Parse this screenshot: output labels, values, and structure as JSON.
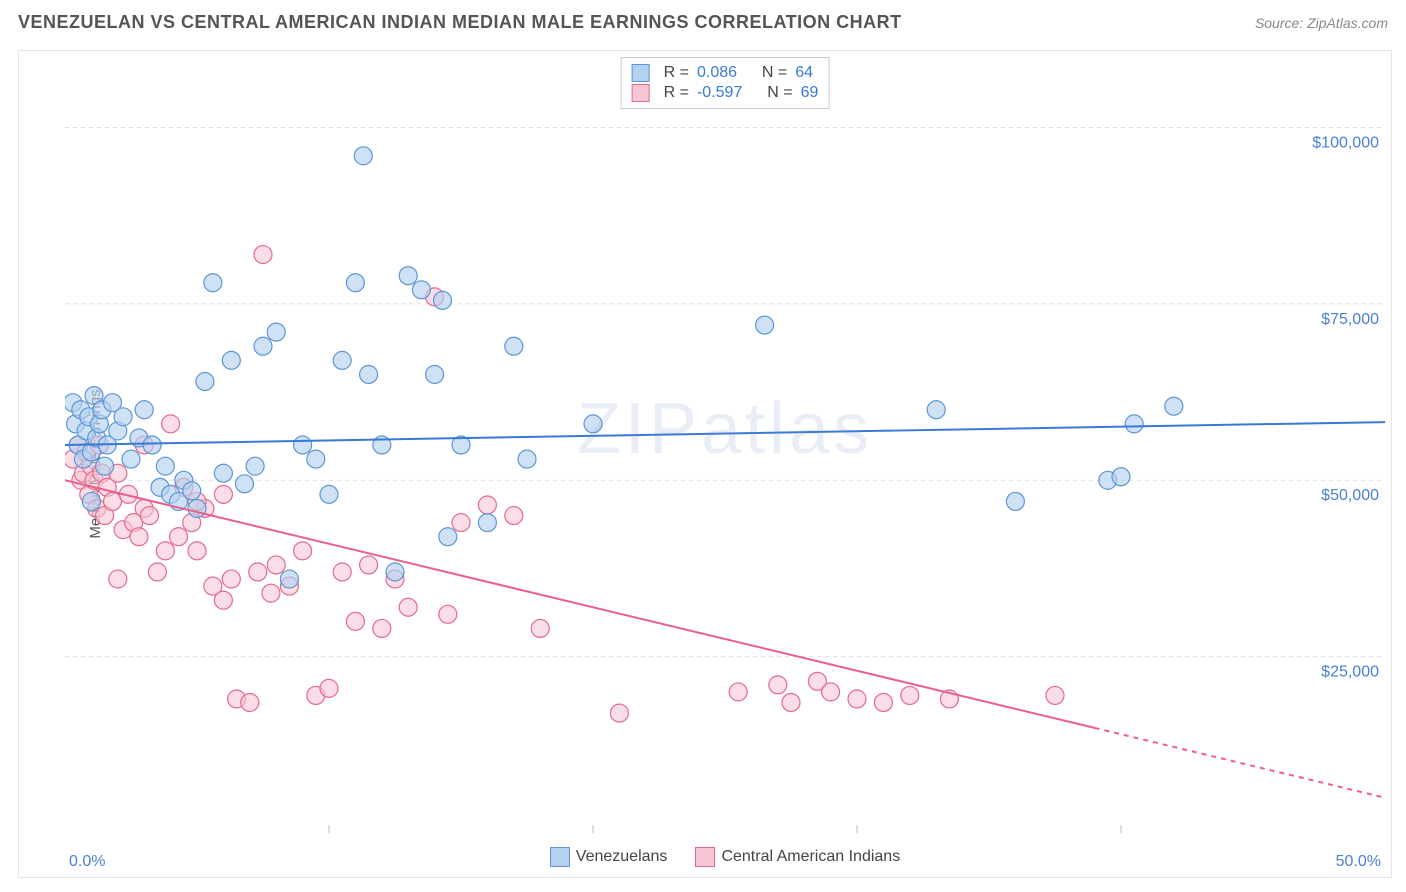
{
  "header": {
    "title": "VENEZUELAN VS CENTRAL AMERICAN INDIAN MEDIAN MALE EARNINGS CORRELATION CHART",
    "source_label": "Source:",
    "source_name": "ZipAtlas.com"
  },
  "watermark": "ZIPatlas",
  "chart": {
    "type": "scatter",
    "ylabel": "Median Male Earnings",
    "xlim": [
      0,
      50
    ],
    "ylim": [
      0,
      110000
    ],
    "x_ticks": [
      0,
      50
    ],
    "x_tick_labels": [
      "0.0%",
      "50.0%"
    ],
    "y_ticks": [
      25000,
      50000,
      75000,
      100000
    ],
    "y_tick_labels": [
      "$25,000",
      "$50,000",
      "$75,000",
      "$100,000"
    ],
    "grid_color": "#dcdcdc",
    "grid_dash": "4,4",
    "background_color": "#ffffff",
    "axis_tick_color": "#bdbdbd",
    "tick_label_color": "#4a7fd6",
    "label_fontsize": 15,
    "tick_fontsize": 16,
    "series": [
      {
        "name": "Venezuelans",
        "fill_color": "#b3d1f0",
        "stroke_color": "#5c96d6",
        "fill_opacity": 0.65,
        "marker_radius": 9,
        "regression": {
          "slope": 65,
          "intercept": 55000,
          "solid_to_x": 50
        },
        "line_color": "#3a78d8",
        "line_width": 2,
        "R": "0.086",
        "N": "64",
        "points": [
          [
            0.3,
            61000
          ],
          [
            0.4,
            58000
          ],
          [
            0.5,
            55000
          ],
          [
            0.6,
            60000
          ],
          [
            0.7,
            53000
          ],
          [
            0.8,
            57000
          ],
          [
            0.9,
            59000
          ],
          [
            1.0,
            54000
          ],
          [
            1.1,
            62000
          ],
          [
            1.2,
            56000
          ],
          [
            1.3,
            58000
          ],
          [
            1.4,
            60000
          ],
          [
            1.5,
            52000
          ],
          [
            1.6,
            55000
          ],
          [
            1.8,
            61000
          ],
          [
            2.0,
            57000
          ],
          [
            2.2,
            59000
          ],
          [
            2.5,
            53000
          ],
          [
            2.8,
            56000
          ],
          [
            3.0,
            60000
          ],
          [
            3.3,
            55000
          ],
          [
            3.6,
            49000
          ],
          [
            3.8,
            52000
          ],
          [
            4.0,
            48000
          ],
          [
            4.3,
            47000
          ],
          [
            4.5,
            50000
          ],
          [
            4.8,
            48500
          ],
          [
            5.0,
            46000
          ],
          [
            5.3,
            64000
          ],
          [
            5.6,
            78000
          ],
          [
            6.0,
            51000
          ],
          [
            6.3,
            67000
          ],
          [
            6.8,
            49500
          ],
          [
            7.2,
            52000
          ],
          [
            7.5,
            69000
          ],
          [
            8.0,
            71000
          ],
          [
            8.5,
            36000
          ],
          [
            9.0,
            55000
          ],
          [
            9.5,
            53000
          ],
          [
            10.0,
            48000
          ],
          [
            10.5,
            67000
          ],
          [
            11.0,
            78000
          ],
          [
            11.3,
            96000
          ],
          [
            11.5,
            65000
          ],
          [
            12.0,
            55000
          ],
          [
            12.5,
            37000
          ],
          [
            13.0,
            79000
          ],
          [
            13.5,
            77000
          ],
          [
            14.0,
            65000
          ],
          [
            14.3,
            75500
          ],
          [
            14.5,
            42000
          ],
          [
            15.0,
            55000
          ],
          [
            16.0,
            44000
          ],
          [
            17.0,
            69000
          ],
          [
            17.5,
            53000
          ],
          [
            20.0,
            58000
          ],
          [
            26.5,
            72000
          ],
          [
            33.0,
            60000
          ],
          [
            36.0,
            47000
          ],
          [
            39.5,
            50000
          ],
          [
            40.0,
            50500
          ],
          [
            40.5,
            58000
          ],
          [
            42.0,
            60500
          ],
          [
            1.0,
            47000
          ]
        ]
      },
      {
        "name": "Central American Indians",
        "fill_color": "#f6c7d3",
        "stroke_color": "#e36a8f",
        "fill_opacity": 0.6,
        "marker_radius": 9,
        "regression": {
          "slope": -900,
          "intercept": 50000,
          "solid_to_x": 39
        },
        "line_color": "#ea5f8b",
        "line_width": 2,
        "R": "-0.597",
        "N": "69",
        "points": [
          [
            0.3,
            53000
          ],
          [
            0.5,
            55000
          ],
          [
            0.6,
            50000
          ],
          [
            0.7,
            51000
          ],
          [
            0.8,
            54000
          ],
          [
            0.9,
            48000
          ],
          [
            1.0,
            52000
          ],
          [
            1.1,
            50000
          ],
          [
            1.2,
            46000
          ],
          [
            1.3,
            55000
          ],
          [
            1.4,
            51000
          ],
          [
            1.5,
            45000
          ],
          [
            1.6,
            49000
          ],
          [
            1.8,
            47000
          ],
          [
            2.0,
            51000
          ],
          [
            2.2,
            43000
          ],
          [
            2.4,
            48000
          ],
          [
            2.6,
            44000
          ],
          [
            2.8,
            42000
          ],
          [
            3.0,
            46000
          ],
          [
            3.2,
            45000
          ],
          [
            3.5,
            37000
          ],
          [
            3.8,
            40000
          ],
          [
            4.0,
            58000
          ],
          [
            4.3,
            42000
          ],
          [
            4.5,
            49000
          ],
          [
            4.8,
            44000
          ],
          [
            5.0,
            40000
          ],
          [
            5.3,
            46000
          ],
          [
            5.6,
            35000
          ],
          [
            6.0,
            48000
          ],
          [
            6.3,
            36000
          ],
          [
            6.5,
            19000
          ],
          [
            7.0,
            18500
          ],
          [
            7.3,
            37000
          ],
          [
            7.5,
            82000
          ],
          [
            7.8,
            34000
          ],
          [
            8.0,
            38000
          ],
          [
            8.5,
            35000
          ],
          [
            9.0,
            40000
          ],
          [
            9.5,
            19500
          ],
          [
            10.0,
            20500
          ],
          [
            10.5,
            37000
          ],
          [
            11.0,
            30000
          ],
          [
            11.5,
            38000
          ],
          [
            12.0,
            29000
          ],
          [
            12.5,
            36000
          ],
          [
            13.0,
            32000
          ],
          [
            14.0,
            76000
          ],
          [
            14.5,
            31000
          ],
          [
            15.0,
            44000
          ],
          [
            16.0,
            46500
          ],
          [
            17.0,
            45000
          ],
          [
            18.0,
            29000
          ],
          [
            21.0,
            17000
          ],
          [
            25.5,
            20000
          ],
          [
            27.0,
            21000
          ],
          [
            27.5,
            18500
          ],
          [
            28.5,
            21500
          ],
          [
            29.0,
            20000
          ],
          [
            30.0,
            19000
          ],
          [
            31.0,
            18500
          ],
          [
            32.0,
            19500
          ],
          [
            33.5,
            19000
          ],
          [
            37.5,
            19500
          ],
          [
            3.0,
            55000
          ],
          [
            2.0,
            36000
          ],
          [
            5.0,
            47000
          ],
          [
            6.0,
            33000
          ]
        ]
      }
    ],
    "legend": {
      "stat_box": {
        "r_label": "R =",
        "n_label": "N ="
      },
      "bottom_items": [
        {
          "label": "Venezuelans",
          "sw_fill": "#b3d1f0",
          "sw_stroke": "#5c96d6"
        },
        {
          "label": "Central American Indians",
          "sw_fill": "#f6c7d3",
          "sw_stroke": "#e36a8f"
        }
      ]
    }
  }
}
